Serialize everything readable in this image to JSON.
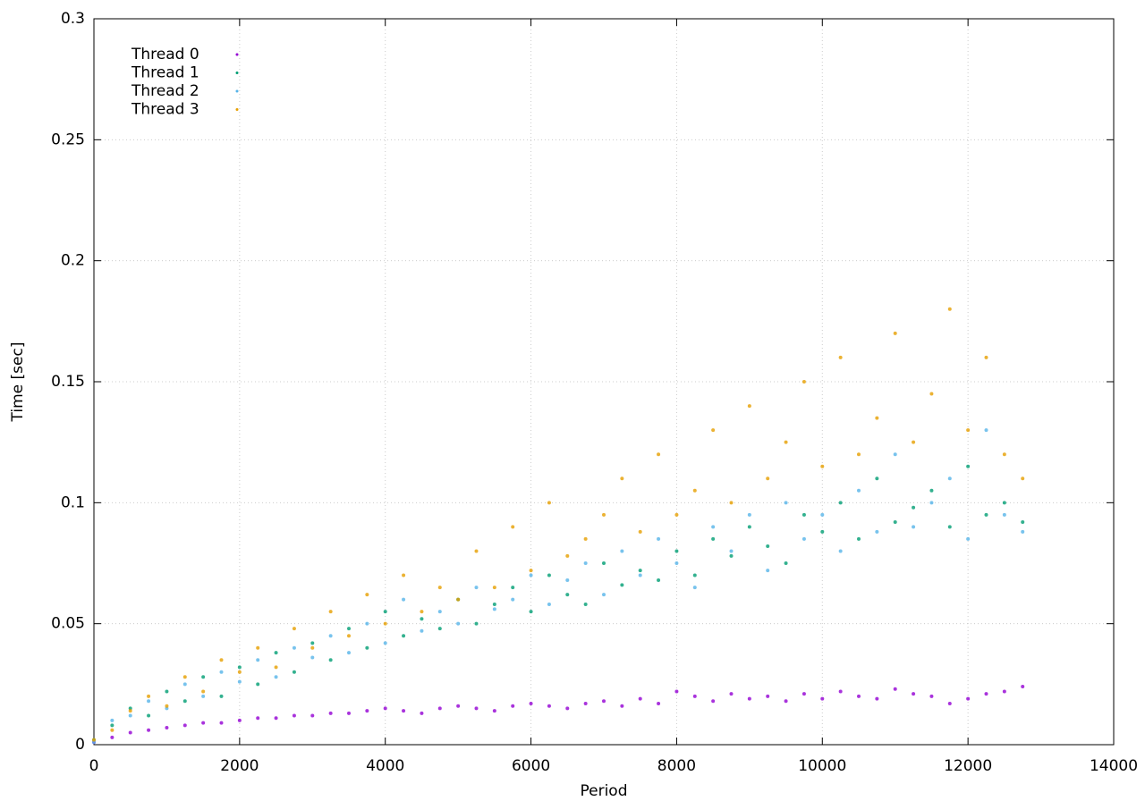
{
  "chart_data": {
    "type": "scatter",
    "xlabel": "Period",
    "ylabel": "Time [sec]",
    "x": [
      0,
      250,
      500,
      750,
      1000,
      1250,
      1500,
      1750,
      2000,
      2250,
      2500,
      2750,
      3000,
      3250,
      3500,
      3750,
      4000,
      4250,
      4500,
      4750,
      5000,
      5250,
      5500,
      5750,
      6000,
      6250,
      6500,
      6750,
      7000,
      7250,
      7500,
      7750,
      8000,
      8250,
      8500,
      8750,
      9000,
      9250,
      9500,
      9750,
      10000,
      10250,
      10500,
      10750,
      11000,
      11250,
      11500,
      11750,
      12000,
      12250,
      12500,
      12750
    ],
    "series": [
      {
        "name": "Thread 0",
        "color": "#9400d3",
        "values": [
          0.001,
          0.003,
          0.005,
          0.006,
          0.007,
          0.008,
          0.009,
          0.009,
          0.01,
          0.011,
          0.011,
          0.012,
          0.012,
          0.013,
          0.013,
          0.014,
          0.015,
          0.014,
          0.013,
          0.015,
          0.016,
          0.015,
          0.014,
          0.016,
          0.017,
          0.016,
          0.015,
          0.017,
          0.018,
          0.016,
          0.019,
          0.017,
          0.022,
          0.02,
          0.018,
          0.021,
          0.019,
          0.02,
          0.018,
          0.021,
          0.019,
          0.022,
          0.02,
          0.019,
          0.023,
          0.021,
          0.02,
          0.017,
          0.019,
          0.021,
          0.022,
          0.024
        ]
      },
      {
        "name": "Thread 1",
        "color": "#009e73",
        "values": [
          0.002,
          0.008,
          0.015,
          0.012,
          0.022,
          0.018,
          0.028,
          0.02,
          0.032,
          0.025,
          0.038,
          0.03,
          0.042,
          0.035,
          0.048,
          0.04,
          0.055,
          0.045,
          0.052,
          0.048,
          0.06,
          0.05,
          0.058,
          0.065,
          0.055,
          0.07,
          0.062,
          0.058,
          0.075,
          0.066,
          0.072,
          0.068,
          0.08,
          0.07,
          0.085,
          0.078,
          0.09,
          0.082,
          0.075,
          0.095,
          0.088,
          0.1,
          0.085,
          0.11,
          0.092,
          0.098,
          0.105,
          0.09,
          0.115,
          0.095,
          0.1,
          0.092
        ]
      },
      {
        "name": "Thread 2",
        "color": "#56b4e9",
        "values": [
          0.001,
          0.01,
          0.012,
          0.018,
          0.015,
          0.025,
          0.02,
          0.03,
          0.026,
          0.035,
          0.028,
          0.04,
          0.036,
          0.045,
          0.038,
          0.05,
          0.042,
          0.06,
          0.047,
          0.055,
          0.05,
          0.065,
          0.056,
          0.06,
          0.07,
          0.058,
          0.068,
          0.075,
          0.062,
          0.08,
          0.07,
          0.085,
          0.075,
          0.065,
          0.09,
          0.08,
          0.095,
          0.072,
          0.1,
          0.085,
          0.095,
          0.08,
          0.105,
          0.088,
          0.12,
          0.09,
          0.1,
          0.11,
          0.085,
          0.13,
          0.095,
          0.088
        ]
      },
      {
        "name": "Thread 3",
        "color": "#e69f00",
        "values": [
          0.002,
          0.006,
          0.014,
          0.02,
          0.016,
          0.028,
          0.022,
          0.035,
          0.03,
          0.04,
          0.032,
          0.048,
          0.04,
          0.055,
          0.045,
          0.062,
          0.05,
          0.07,
          0.055,
          0.065,
          0.06,
          0.08,
          0.065,
          0.09,
          0.072,
          0.1,
          0.078,
          0.085,
          0.095,
          0.11,
          0.088,
          0.12,
          0.095,
          0.105,
          0.13,
          0.1,
          0.14,
          0.11,
          0.125,
          0.15,
          0.115,
          0.16,
          0.12,
          0.135,
          0.17,
          0.125,
          0.145,
          0.18,
          0.13,
          0.16,
          0.12,
          0.11
        ]
      }
    ],
    "xlim": [
      0,
      14000
    ],
    "xticks": [
      0,
      2000,
      4000,
      6000,
      8000,
      10000,
      12000,
      14000
    ],
    "ylim": [
      0,
      0.3
    ],
    "yticks": [
      0,
      0.05,
      0.1,
      0.15,
      0.2,
      0.25,
      0.3
    ],
    "grid": true,
    "legend": "upper-left"
  }
}
